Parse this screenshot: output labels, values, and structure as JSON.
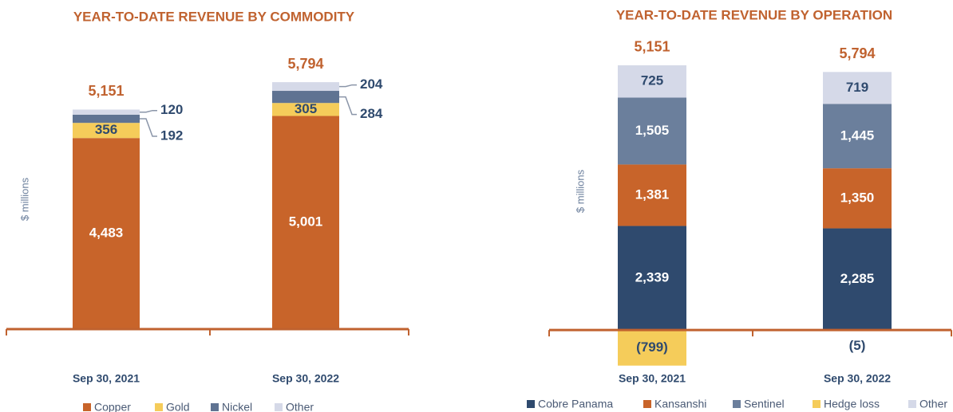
{
  "chart_data": [
    {
      "type": "stacked-bar",
      "title": "YEAR-TO-DATE REVENUE BY COMMODITY",
      "y_label": "$ millions",
      "categories": [
        "Sep 30, 2021",
        "Sep 30, 2022"
      ],
      "ylim": [
        0,
        6600
      ],
      "series": [
        {
          "name": "Copper",
          "color": "#c8642a",
          "values": [
            4483,
            5001
          ],
          "value_labels": [
            "4,483",
            "5,001"
          ]
        },
        {
          "name": "Gold",
          "color": "#f5cc5a",
          "values": [
            356,
            305
          ]
        },
        {
          "name": "Nickel",
          "color": "#5f7392",
          "values": [
            192,
            284
          ]
        },
        {
          "name": "Other",
          "color": "#d5d9e8",
          "values": [
            120,
            204
          ]
        }
      ],
      "totals": [
        5151,
        5794
      ],
      "total_labels": [
        "5,151",
        "5,794"
      ]
    },
    {
      "type": "stacked-bar",
      "title": "YEAR-TO-DATE REVENUE BY OPERATION",
      "y_label": "$ millions",
      "categories": [
        "Sep 30, 2021",
        "Sep 30, 2022"
      ],
      "ylim": [
        -1000,
        6700
      ],
      "series": [
        {
          "name": "Cobre Panama",
          "color": "#2f4a6e",
          "values": [
            2339,
            2285
          ],
          "value_labels": [
            "2,339",
            "2,285"
          ]
        },
        {
          "name": "Kansanshi",
          "color": "#c8642a",
          "values": [
            1381,
            1350
          ],
          "value_labels": [
            "1,381",
            "1,350"
          ]
        },
        {
          "name": "Sentinel",
          "color": "#6b7f9c",
          "values": [
            1505,
            1445
          ],
          "value_labels": [
            "1,505",
            "1,445"
          ]
        },
        {
          "name": "Hedge loss",
          "color": "#f5cc5a",
          "values": [
            -799,
            -5
          ],
          "value_labels": [
            "(799)",
            "(5)"
          ]
        },
        {
          "name": "Other",
          "color": "#d5d9e8",
          "values": [
            725,
            719
          ]
        }
      ],
      "totals": [
        5151,
        5794
      ],
      "total_labels": [
        "5,151",
        "5,794"
      ]
    }
  ]
}
